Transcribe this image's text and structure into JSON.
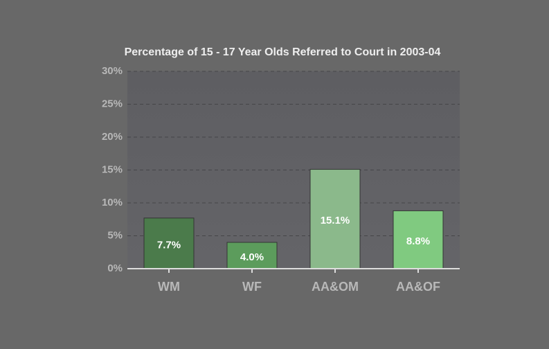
{
  "chart_data": {
    "type": "bar",
    "title": "Percentage of 15 - 17 Year Olds Referred to Court in 2003-04",
    "categories": [
      "WM",
      "WF",
      "AA&OM",
      "AA&OF"
    ],
    "values": [
      7.7,
      4.0,
      15.1,
      8.8
    ],
    "value_labels": [
      "7.7%",
      "4.0%",
      "15.1%",
      "8.8%"
    ],
    "colors": [
      "#4b7b4b",
      "#5c9c5c",
      "#8bb98b",
      "#80ca80"
    ],
    "ylim": [
      0,
      30
    ],
    "yticks": [
      {
        "value": 0,
        "label": "0%"
      },
      {
        "value": 5,
        "label": "5%"
      },
      {
        "value": 10,
        "label": "10%"
      },
      {
        "value": 15,
        "label": "15%"
      },
      {
        "value": 20,
        "label": "20%"
      },
      {
        "value": 25,
        "label": "25%"
      },
      {
        "value": 30,
        "label": "30%"
      }
    ],
    "grid": true
  }
}
